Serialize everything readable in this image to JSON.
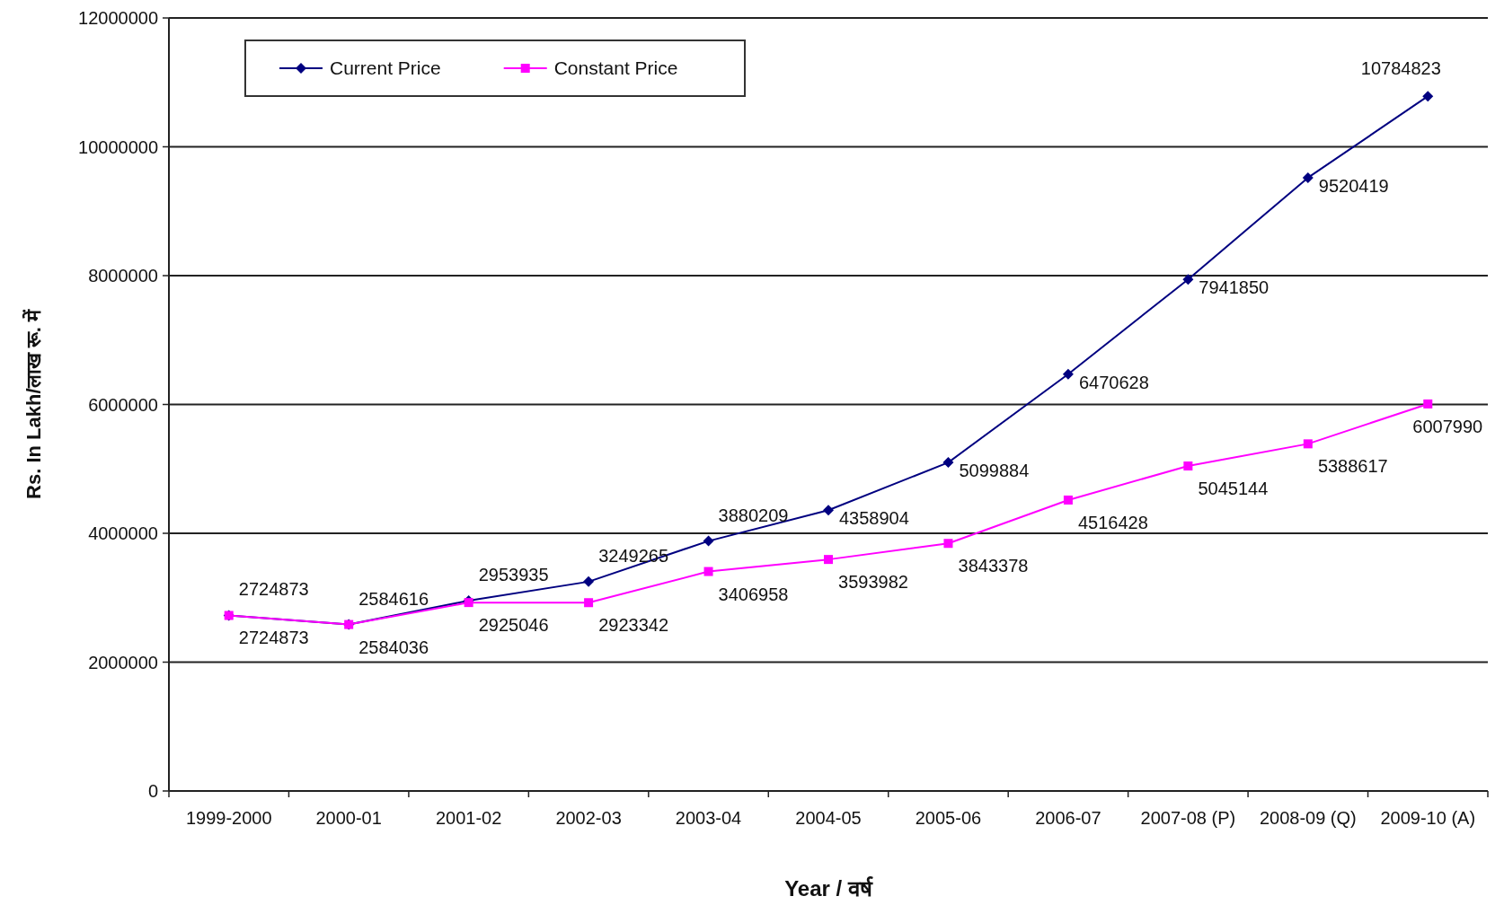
{
  "chart_data": {
    "type": "line",
    "xlabel": "Year / वर्ष",
    "ylabel": "Rs. In Lakh/लाख रू. में",
    "categories": [
      "1999-2000",
      "2000-01",
      "2001-02",
      "2002-03",
      "2003-04",
      "2004-05",
      "2005-06",
      "2006-07",
      "2007-08 (P)",
      "2008-09 (Q)",
      "2009-10 (A)"
    ],
    "series": [
      {
        "name": "Current Price",
        "color": "#000080",
        "marker": "diamond",
        "values": [
          2724873,
          2584616,
          2953935,
          3249265,
          3880209,
          4358904,
          5099884,
          6470628,
          7941850,
          9520419,
          10784823
        ]
      },
      {
        "name": "Constant Price",
        "color": "#ff00ff",
        "marker": "square",
        "values": [
          2724873,
          2584036,
          2925046,
          2923342,
          3406958,
          3593982,
          3843378,
          4516428,
          5045144,
          5388617,
          6007990
        ]
      }
    ],
    "ylim": [
      0,
      12000000
    ],
    "yticks": [
      0,
      2000000,
      4000000,
      6000000,
      8000000,
      10000000,
      12000000
    ],
    "grid": "y",
    "legend": "top left",
    "data_labels": true
  }
}
